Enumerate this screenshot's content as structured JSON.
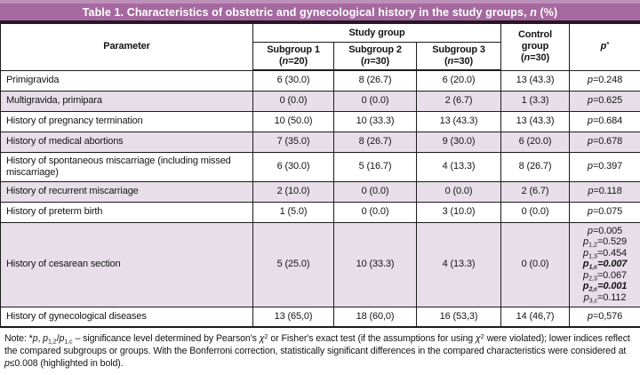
{
  "title_bar": {
    "background": "#a5699f",
    "top_strip_color": "#bd90b9",
    "bottom_line_color": "#2a1626",
    "segments": [
      {
        "t": "Table 1. Characteristics of obstetric and gynecological history in the study groups, "
      },
      {
        "t": "n",
        "i": true
      },
      {
        "t": " (%)"
      }
    ]
  },
  "table": {
    "alt_row_color": "#e7dee9",
    "columns": {
      "parameter": "Parameter",
      "study_group": "Study group",
      "subgroups": [
        {
          "name": "Subgroup 1",
          "n": "(n=20)"
        },
        {
          "name": "Subgroup 2",
          "n": "(n=30)"
        },
        {
          "name": "Subgroup 3",
          "n": "(n=30)"
        }
      ],
      "control": {
        "name": "Control group",
        "n": "(n=30)"
      },
      "p": {
        "base": "p",
        "sup": "*"
      }
    },
    "rows": [
      {
        "parameter": "Primigravida",
        "values": [
          "6 (30.0)",
          "8 (26.7)",
          "6 (20.0)",
          "13 (43.3)"
        ],
        "p": "p=0.248"
      },
      {
        "parameter": "Multigravida, primipara",
        "values": [
          "0 (0.0)",
          "0 (0.0)",
          "2 (6.7)",
          "1 (3.3)"
        ],
        "p": "p=0.625"
      },
      {
        "parameter": "History of pregnancy termination",
        "values": [
          "10 (50.0)",
          "10 (33.3)",
          "13 (43.3)",
          "13 (43.3)"
        ],
        "p": "p=0.684"
      },
      {
        "parameter": "History of medical abortions",
        "values": [
          "7 (35.0)",
          "8 (26.7)",
          "9 (30.0)",
          "6 (20.0)"
        ],
        "p": "p=0.678"
      },
      {
        "parameter": "History of spontaneous miscarriage (including missed miscarriage)",
        "values": [
          "6 (30.0)",
          "5 (16.7)",
          "4 (13.3)",
          "8 (26.7)"
        ],
        "p": "p=0.397"
      },
      {
        "parameter": "History of recurrent miscarriage",
        "values": [
          "2 (10.0)",
          "0 (0.0)",
          "0 (0.0)",
          "2 (6.7)"
        ],
        "p": "p=0.118"
      },
      {
        "parameter": "History of preterm birth",
        "values": [
          "1 (5.0)",
          "0 (0.0)",
          "3 (10.0)",
          "0 (0.0)"
        ],
        "p": "p=0.075"
      },
      {
        "parameter": "History of cesarean section",
        "values": [
          "5 (25.0)",
          "10 (33.3)",
          "4 (13.3)",
          "0 (0.0)"
        ],
        "p_list": [
          {
            "sub": "",
            "rest": "=0.005",
            "bold": false
          },
          {
            "sub": "1,2",
            "rest": "=0.529",
            "bold": false
          },
          {
            "sub": "1,3",
            "rest": "=0.454",
            "bold": false
          },
          {
            "sub": "1,c",
            "rest": "=0.007",
            "bold": true
          },
          {
            "sub": "2,3",
            "rest": "=0.067",
            "bold": false
          },
          {
            "sub": "2,c",
            "rest": "=0.001",
            "bold": true
          },
          {
            "sub": "3,c",
            "rest": "=0.112",
            "bold": false
          }
        ]
      },
      {
        "parameter": "History of gynecological diseases",
        "values": [
          "13 (65,0)",
          "18 (60,0)",
          "16 (53,3)",
          "14 (46,7)"
        ],
        "p": "p=0,576"
      }
    ]
  },
  "note": {
    "segments": [
      {
        "t": "Note: *"
      },
      {
        "t": "p",
        "i": true
      },
      {
        "t": ", "
      },
      {
        "t": "p",
        "i": true
      },
      {
        "t": "1,2",
        "sub": true
      },
      {
        "t": "/"
      },
      {
        "t": "p",
        "i": true
      },
      {
        "t": "1,c",
        "sub": true
      },
      {
        "t": " – significance level determined by Pearson's "
      },
      {
        "t": "χ",
        "i": true
      },
      {
        "t": "2",
        "sup": true
      },
      {
        "t": " or Fisher's exact test (if the assumptions for using "
      },
      {
        "t": "χ",
        "i": true
      },
      {
        "t": "2",
        "sup": true
      },
      {
        "t": " were violated); lower indices reflect the compared subgroups or groups. With the Bonferroni correction, statistically significant differences in the compared characteristics were considered at "
      },
      {
        "t": "p",
        "i": true
      },
      {
        "t": "≤0.008 (highlighted in bold)."
      }
    ]
  }
}
